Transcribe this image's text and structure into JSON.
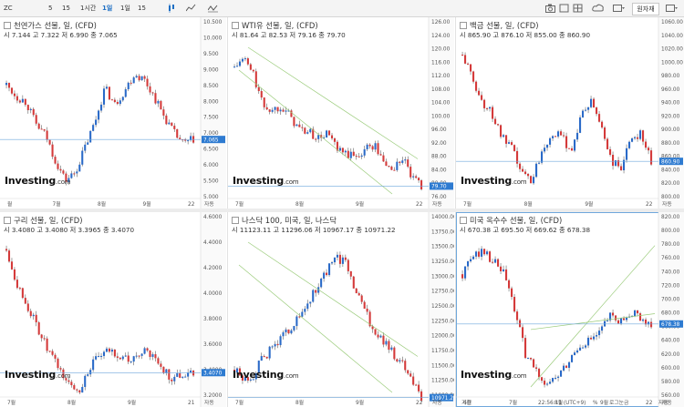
{
  "toolbar": {
    "symbol": "ZC",
    "intervals": [
      "5",
      "15",
      "1시간",
      "1일",
      "1일",
      "15"
    ],
    "main_button": "원자재"
  },
  "panels": [
    {
      "title": "천연가스 선물, 일, (CFD)",
      "ohlc": "시 7.144  고 7.322  저 6.990  종 7.065",
      "last_price": "7.065",
      "y_ticks": [
        "10.500",
        "10.000",
        "9.500",
        "9.000",
        "8.500",
        "8.000",
        "7.500",
        "7.000",
        "6.500",
        "6.000",
        "5.500",
        "5.000"
      ],
      "x_ticks": [
        "월",
        "7월",
        "8월",
        "9월",
        "22"
      ],
      "footer": "자동",
      "logo": "Investing",
      "logo_suffix": ".com"
    },
    {
      "title": "WTI유 선물, 일, (CFD)",
      "ohlc": "시 81.64  고 82.53  저 79.16  종 79.70",
      "last_price": "79.70",
      "y_ticks": [
        "126.00",
        "124.00",
        "120.00",
        "116.00",
        "112.00",
        "108.00",
        "104.00",
        "100.00",
        "96.00",
        "92.00",
        "88.00",
        "84.00",
        "80.00",
        "76.00"
      ],
      "x_ticks": [
        "7월",
        "8월",
        "9월",
        "22"
      ],
      "footer": "자동",
      "logo": "Investing",
      "logo_suffix": ".com"
    },
    {
      "title": "백금 선물, 일, (CFD)",
      "ohlc": "시 865.90  고 876.10  저 855.00  종 860.90",
      "last_price": "860.90",
      "y_ticks": [
        "1060.00",
        "1040.00",
        "1020.00",
        "1000.00",
        "980.00",
        "960.00",
        "940.00",
        "920.00",
        "900.00",
        "880.00",
        "860.00",
        "840.00",
        "820.00",
        "800.00"
      ],
      "x_ticks": [
        "7월",
        "8월",
        "9월",
        "22"
      ],
      "footer": "자동",
      "logo": "Investing",
      "logo_suffix": ".com"
    },
    {
      "title": "구리 선물, 일, (CFD)",
      "ohlc": "시 3.4080  고 3.4080  저 3.3965  종 3.4070",
      "last_price": "3.4070",
      "y_ticks": [
        "4.6000",
        "4.4000",
        "4.2000",
        "4.0000",
        "3.8000",
        "3.6000",
        "3.4000",
        "3.2000"
      ],
      "x_ticks": [
        "7월",
        "8월",
        "9월",
        "21"
      ],
      "footer": "자동",
      "logo": "Investing",
      "logo_suffix": ".com"
    },
    {
      "title": "나스닥 100, 미국, 일, 나스닥",
      "ohlc": "시 11123.11  고 11296.06  저 10967.17  종 10971.22",
      "last_price": "10971.22",
      "y_ticks": [
        "14000.00",
        "13750.00",
        "13500.00",
        "13250.00",
        "13000.00",
        "12750.00",
        "12500.00",
        "12250.00",
        "12000.00",
        "11750.00",
        "11500.00",
        "11250.00",
        "11000.00"
      ],
      "x_ticks": [
        "7월",
        "8월",
        "9월",
        "22"
      ],
      "footer": "자동",
      "logo": "Investing",
      "logo_suffix": ".com"
    },
    {
      "title": "미국 옥수수 선물, 일, (CFD)",
      "ohlc": "시 670.38  고 695.50  저 669.62  종 678.38",
      "last_price": "678.38",
      "y_ticks": [
        "820.00",
        "800.00",
        "780.00",
        "760.00",
        "740.00",
        "720.00",
        "700.00",
        "680.00",
        "660.00",
        "640.00",
        "620.00",
        "600.00",
        "580.00",
        "560.00"
      ],
      "x_ticks": [
        "6월",
        "7월",
        "8월",
        "9월",
        "22"
      ],
      "footer": "자동",
      "logo": "Investing",
      "logo_suffix": ".com",
      "bottom_bar": [
        "기간",
        "22:56:11 (UTC+9)",
        "%",
        "로그눈금",
        "자동"
      ]
    }
  ],
  "bottom_left_labels": [
    "기간",
    "로그눈금",
    "기간",
    "로그눈금"
  ],
  "chart_data": [
    {
      "type": "candlestick",
      "series_name": "천연가스 선물",
      "y_range": [
        5.0,
        10.5
      ],
      "trend": [
        9.0,
        8.6,
        8.4,
        7.6,
        7.2,
        6.3,
        5.6,
        5.9,
        6.8,
        7.7,
        8.9,
        8.3,
        8.8,
        9.4,
        9.2,
        8.6,
        7.9,
        7.3,
        6.9,
        7.07
      ],
      "last": 7.065
    },
    {
      "type": "candlestick",
      "series_name": "WTI유 선물",
      "y_range": [
        76,
        126
      ],
      "trend": [
        118,
        121,
        116,
        106,
        104,
        106,
        102,
        98,
        97,
        95,
        97,
        91,
        90,
        89,
        92,
        93,
        87,
        85,
        89,
        82,
        79.7
      ],
      "last": 79.7
    },
    {
      "type": "candlestick",
      "series_name": "백금 선물",
      "y_range": [
        800,
        1060
      ],
      "trend": [
        1040,
        1000,
        960,
        940,
        900,
        880,
        840,
        830,
        880,
        910,
        900,
        880,
        940,
        960,
        920,
        860,
        850,
        900,
        910,
        860.9
      ],
      "last": 860.9
    },
    {
      "type": "candlestick",
      "series_name": "구리 선물",
      "y_range": [
        3.2,
        4.6
      ],
      "trend": [
        4.5,
        4.2,
        4.0,
        3.8,
        3.6,
        3.45,
        3.3,
        3.25,
        3.45,
        3.55,
        3.6,
        3.55,
        3.5,
        3.6,
        3.55,
        3.45,
        3.35,
        3.4,
        3.41
      ],
      "last": 3.407
    },
    {
      "type": "candlestick",
      "series_name": "나스닥 100",
      "y_range": [
        11000,
        14000
      ],
      "trend": [
        11500,
        11300,
        11400,
        11700,
        11900,
        12100,
        12300,
        12500,
        12800,
        13100,
        13400,
        13600,
        13500,
        13000,
        12600,
        12200,
        12000,
        11800,
        11600,
        11300,
        10971
      ],
      "last": 10971.22
    },
    {
      "type": "candlestick",
      "series_name": "미국 옥수수 선물",
      "y_range": [
        560,
        820
      ],
      "trend": [
        760,
        790,
        800,
        780,
        760,
        700,
        630,
        600,
        580,
        590,
        610,
        640,
        650,
        660,
        690,
        680,
        700,
        690,
        678
      ],
      "last": 678.38
    }
  ]
}
